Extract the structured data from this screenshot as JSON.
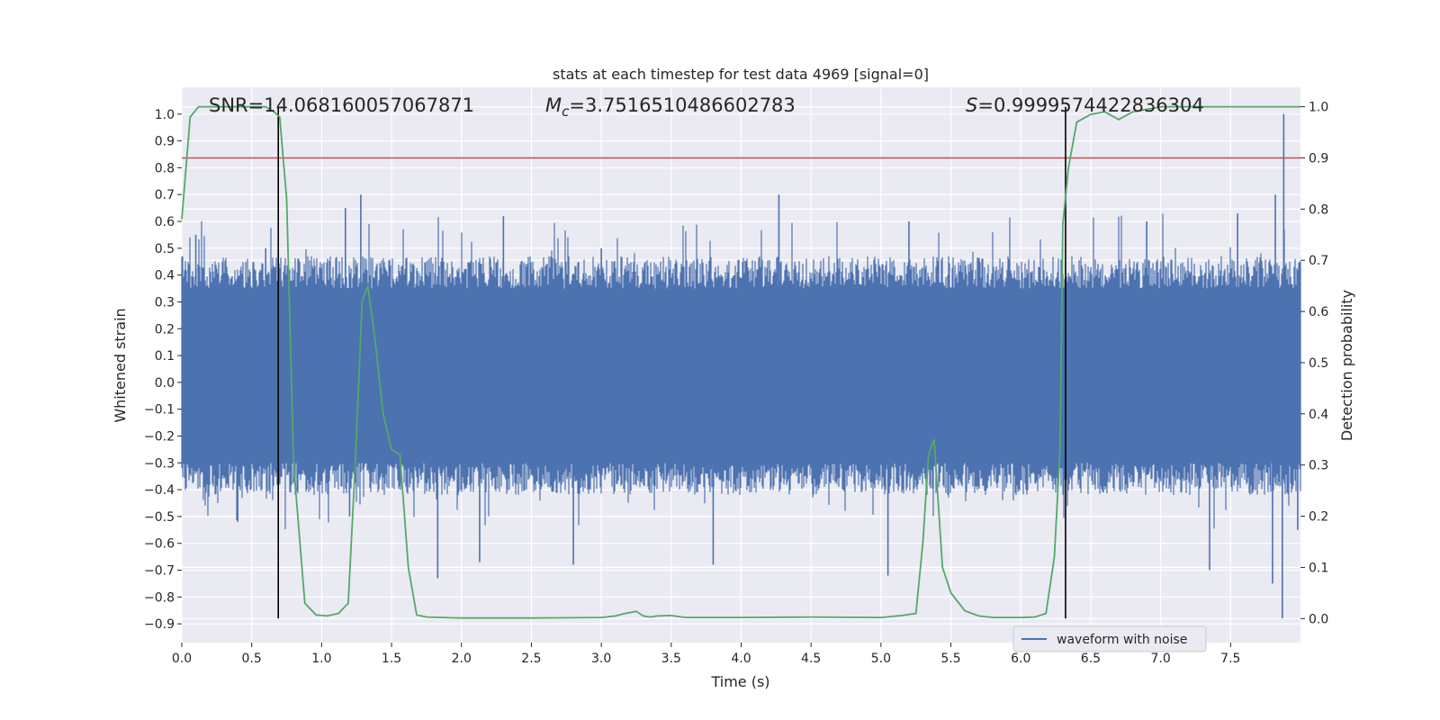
{
  "chart_data": {
    "type": "line",
    "title": "stats at each timestep for test data 4969 [signal=0]",
    "xlabel": "Time (s)",
    "ylabel": "Whitened strain",
    "y2label": "Detection probability",
    "xlim": [
      0.0,
      8.0
    ],
    "ylim": [
      -0.97,
      1.1
    ],
    "y2lim": [
      -0.047,
      1.038
    ],
    "x_ticks": [
      "0.0",
      "0.5",
      "1.0",
      "1.5",
      "2.0",
      "2.5",
      "3.0",
      "3.5",
      "4.0",
      "4.5",
      "5.0",
      "5.5",
      "6.0",
      "6.5",
      "7.0",
      "7.5"
    ],
    "y_ticks": [
      "1.0",
      "0.9",
      "0.8",
      "0.7",
      "0.6",
      "0.5",
      "0.4",
      "0.3",
      "0.2",
      "0.1",
      "0.0",
      "−0.1",
      "−0.2",
      "−0.3",
      "−0.4",
      "−0.5",
      "−0.6",
      "−0.7",
      "−0.8",
      "−0.9"
    ],
    "y2_ticks": [
      "1.0",
      "0.9",
      "0.8",
      "0.7",
      "0.6",
      "0.5",
      "0.4",
      "0.3",
      "0.2",
      "0.1",
      "0.0"
    ],
    "annotations": {
      "snr": "SNR=14.068160057067871",
      "mc_symbol": "M",
      "mc_sub": "c",
      "mc_value": "=3.7516510486602783",
      "s_symbol": "S",
      "s_value": "=0.9999574422836304"
    },
    "legend": {
      "position": "lower-right",
      "entries": [
        "waveform with noise"
      ]
    },
    "grid": true,
    "threshold_probability": 0.9,
    "vertical_lines_time": [
      0.69,
      6.32
    ],
    "series": [
      {
        "name": "waveform with noise",
        "kind": "noise-band",
        "axis": "left",
        "band": [
          -0.3,
          0.35
        ],
        "spikes": [
          [
            0.1,
            0.55
          ],
          [
            0.6,
            0.5
          ],
          [
            1.17,
            0.65
          ],
          [
            1.28,
            0.7
          ],
          [
            2.3,
            0.62
          ],
          [
            3.0,
            0.5
          ],
          [
            4.27,
            0.7
          ],
          [
            5.2,
            0.6
          ],
          [
            6.9,
            0.6
          ],
          [
            7.55,
            0.63
          ],
          [
            7.82,
            0.7
          ],
          [
            7.88,
            1.0
          ],
          [
            0.4,
            -0.52
          ],
          [
            1.2,
            -0.5
          ],
          [
            1.83,
            -0.73
          ],
          [
            2.13,
            -0.67
          ],
          [
            2.8,
            -0.68
          ],
          [
            3.8,
            -0.68
          ],
          [
            5.05,
            -0.72
          ],
          [
            7.35,
            -0.7
          ],
          [
            7.8,
            -0.75
          ],
          [
            7.87,
            -0.88
          ],
          [
            7.98,
            -0.55
          ]
        ]
      },
      {
        "axis": "right",
        "color": "#55a868",
        "x": [
          0.0,
          0.06,
          0.12,
          0.2,
          0.3,
          0.4,
          0.5,
          0.6,
          0.66,
          0.7,
          0.75,
          0.8,
          0.88,
          0.96,
          1.04,
          1.12,
          1.19,
          1.24,
          1.29,
          1.33,
          1.38,
          1.44,
          1.5,
          1.56,
          1.62,
          1.68,
          1.75,
          2.0,
          2.5,
          3.0,
          3.1,
          3.17,
          3.25,
          3.3,
          3.35,
          3.4,
          3.5,
          3.6,
          4.0,
          4.5,
          5.0,
          5.15,
          5.25,
          5.3,
          5.34,
          5.38,
          5.44,
          5.5,
          5.6,
          5.7,
          5.8,
          6.0,
          6.1,
          6.18,
          6.24,
          6.28,
          6.3,
          6.34,
          6.4,
          6.5,
          6.6,
          6.7,
          6.8,
          6.9,
          7.0,
          7.2,
          7.5,
          8.0
        ],
        "y": [
          0.78,
          0.98,
          1.0,
          1.0,
          1.0,
          1.0,
          1.0,
          1.0,
          0.99,
          0.98,
          0.82,
          0.3,
          0.03,
          0.007,
          0.005,
          0.01,
          0.03,
          0.3,
          0.62,
          0.65,
          0.55,
          0.4,
          0.33,
          0.32,
          0.1,
          0.007,
          0.003,
          0.001,
          0.001,
          0.002,
          0.005,
          0.01,
          0.014,
          0.005,
          0.003,
          0.005,
          0.006,
          0.002,
          0.002,
          0.003,
          0.002,
          0.006,
          0.01,
          0.15,
          0.32,
          0.35,
          0.1,
          0.05,
          0.015,
          0.005,
          0.002,
          0.002,
          0.003,
          0.01,
          0.12,
          0.33,
          0.77,
          0.88,
          0.97,
          0.985,
          0.99,
          0.975,
          0.99,
          0.995,
          1.0,
          1.0,
          1.0,
          1.0
        ]
      }
    ]
  }
}
